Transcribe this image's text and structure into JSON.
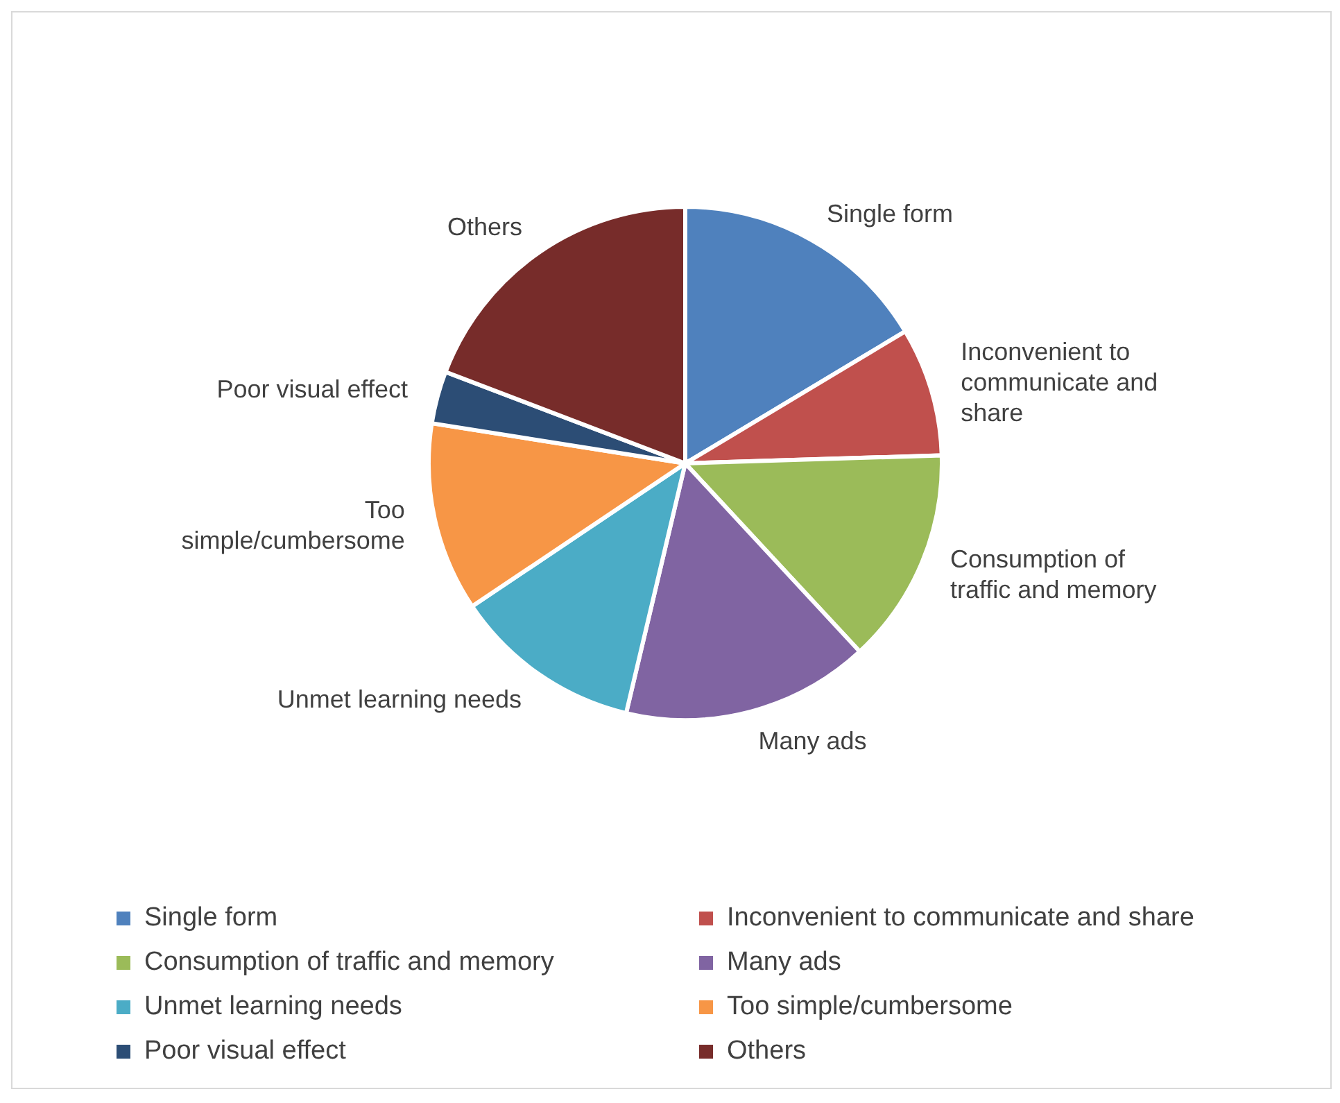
{
  "chart_data": {
    "type": "pie",
    "categories": [
      "Single form",
      "Inconvenient to communicate and share",
      "Consumption of traffic and memory",
      "Many ads",
      "Unmet learning needs",
      "Too simple/cumbersome",
      "Poor visual effect",
      "Others"
    ],
    "values": [
      16.4,
      8.1,
      13.6,
      15.6,
      11.9,
      11.9,
      3.3,
      19.2
    ],
    "colors": [
      "#4f81bd",
      "#c0504d",
      "#9bbb59",
      "#8064a2",
      "#4bacc6",
      "#f79646",
      "#2c4d75",
      "#772c2a"
    ],
    "legend": "bottom"
  }
}
